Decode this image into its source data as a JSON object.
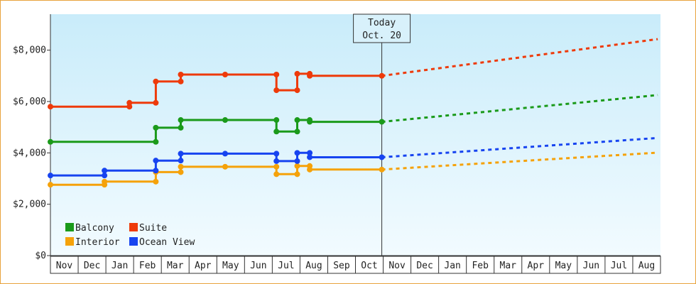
{
  "chart_data": {
    "type": "line",
    "y_ticks": [
      "$0",
      "$2,000",
      "$4,000",
      "$6,000",
      "$8,000"
    ],
    "y_tick_values": [
      0,
      2000,
      4000,
      6000,
      8000
    ],
    "ylim": [
      0,
      9400
    ],
    "months": [
      "Nov",
      "Dec",
      "Jan",
      "Feb",
      "Mar",
      "Apr",
      "May",
      "Jun",
      "Jul",
      "Aug",
      "Sep",
      "Oct",
      "Nov",
      "Dec",
      "Jan",
      "Feb",
      "Mar",
      "Apr",
      "May",
      "Jun",
      "Jul",
      "Aug"
    ],
    "today": {
      "line1": "Today",
      "line2": "Oct. 20",
      "at": 11.95
    },
    "grid": false,
    "legend_placement": "bottom-left",
    "series": [
      {
        "name": "Balcony",
        "color": "#1a9a1a",
        "x": [
          0,
          3.8,
          3.8,
          4.7,
          4.7,
          6.3,
          8.15,
          8.15,
          8.9,
          8.9,
          9.35,
          9.35,
          11.95
        ],
        "y": [
          4430,
          4430,
          4980,
          4980,
          5280,
          5280,
          5280,
          4830,
          4830,
          5280,
          5280,
          5210,
          5210
        ],
        "forecast_x": [
          11.95,
          21.9
        ],
        "forecast_y": [
          5210,
          6250
        ]
      },
      {
        "name": "Suite",
        "color": "#ee3a0a",
        "x": [
          0,
          2.85,
          2.85,
          3.8,
          3.8,
          4.7,
          4.7,
          6.3,
          8.15,
          8.15,
          8.9,
          8.9,
          9.35,
          9.35,
          11.95
        ],
        "y": [
          5800,
          5800,
          5950,
          5950,
          6780,
          6780,
          7050,
          7050,
          7050,
          6440,
          6440,
          7080,
          7080,
          7000,
          7000
        ],
        "forecast_x": [
          11.95,
          21.9
        ],
        "forecast_y": [
          7000,
          8430
        ]
      },
      {
        "name": "Interior",
        "color": "#f5a20a",
        "x": [
          0,
          1.95,
          1.95,
          3.8,
          3.8,
          4.7,
          4.7,
          6.3,
          8.15,
          8.15,
          8.9,
          8.9,
          9.35,
          9.35,
          11.95
        ],
        "y": [
          2760,
          2760,
          2880,
          2880,
          3250,
          3250,
          3460,
          3460,
          3460,
          3170,
          3170,
          3490,
          3490,
          3350,
          3350
        ],
        "forecast_x": [
          11.95,
          21.9
        ],
        "forecast_y": [
          3350,
          4010
        ]
      },
      {
        "name": "Ocean View",
        "color": "#1744f0",
        "x": [
          0,
          1.95,
          1.95,
          3.8,
          3.8,
          4.7,
          4.7,
          6.3,
          8.15,
          8.15,
          8.9,
          8.9,
          9.35,
          9.35,
          11.95
        ],
        "y": [
          3120,
          3120,
          3310,
          3310,
          3700,
          3700,
          3970,
          3970,
          3970,
          3680,
          3680,
          4000,
          4000,
          3830,
          3830
        ],
        "forecast_x": [
          11.95,
          21.9
        ],
        "forecast_y": [
          3830,
          4580
        ]
      }
    ],
    "markers": {
      "Balcony": [
        [
          0,
          4430
        ],
        [
          3.8,
          4430
        ],
        [
          3.8,
          4980
        ],
        [
          4.7,
          4980
        ],
        [
          4.7,
          5280
        ],
        [
          6.3,
          5280
        ],
        [
          8.15,
          5280
        ],
        [
          8.15,
          4830
        ],
        [
          8.9,
          4830
        ],
        [
          8.9,
          5280
        ],
        [
          9.35,
          5280
        ],
        [
          9.35,
          5210
        ],
        [
          11.95,
          5210
        ]
      ],
      "Suite": [
        [
          0,
          5800
        ],
        [
          2.85,
          5800
        ],
        [
          2.85,
          5950
        ],
        [
          3.8,
          5950
        ],
        [
          3.8,
          6780
        ],
        [
          4.7,
          6780
        ],
        [
          4.7,
          7050
        ],
        [
          6.3,
          7050
        ],
        [
          8.15,
          7050
        ],
        [
          8.15,
          6440
        ],
        [
          8.9,
          6440
        ],
        [
          8.9,
          7080
        ],
        [
          9.35,
          7080
        ],
        [
          9.35,
          7000
        ],
        [
          11.95,
          7000
        ]
      ],
      "Interior": [
        [
          0,
          2760
        ],
        [
          1.95,
          2760
        ],
        [
          1.95,
          2880
        ],
        [
          3.8,
          2880
        ],
        [
          3.8,
          3250
        ],
        [
          4.7,
          3250
        ],
        [
          4.7,
          3460
        ],
        [
          6.3,
          3460
        ],
        [
          8.15,
          3460
        ],
        [
          8.15,
          3170
        ],
        [
          8.9,
          3170
        ],
        [
          8.9,
          3490
        ],
        [
          9.35,
          3490
        ],
        [
          9.35,
          3350
        ],
        [
          11.95,
          3350
        ]
      ],
      "Ocean View": [
        [
          0,
          3120
        ],
        [
          1.95,
          3120
        ],
        [
          1.95,
          3310
        ],
        [
          3.8,
          3310
        ],
        [
          3.8,
          3700
        ],
        [
          4.7,
          3700
        ],
        [
          4.7,
          3970
        ],
        [
          6.3,
          3970
        ],
        [
          8.15,
          3970
        ],
        [
          8.15,
          3680
        ],
        [
          8.9,
          3680
        ],
        [
          8.9,
          4000
        ],
        [
          9.35,
          4000
        ],
        [
          9.35,
          3830
        ],
        [
          11.95,
          3830
        ]
      ]
    },
    "legend_order": [
      "Balcony",
      "Suite",
      "Interior",
      "Ocean View"
    ]
  }
}
